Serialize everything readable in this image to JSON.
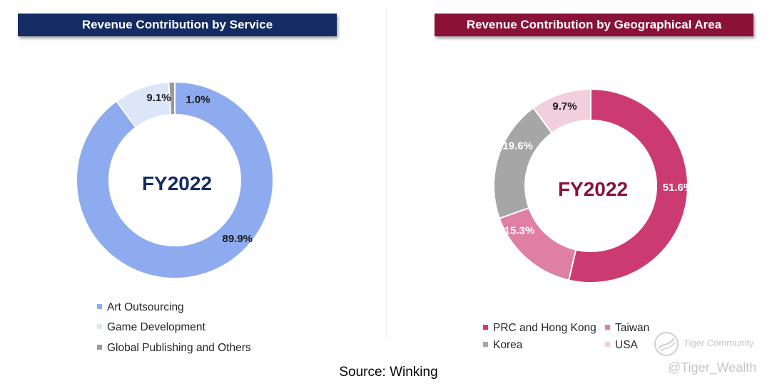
{
  "left_panel": {
    "title": "Revenue Contribution by Service",
    "center_label": "FY2022",
    "legend": [
      {
        "label": "Art Outsourcing",
        "color": "#8fabf0"
      },
      {
        "label": "Game Development",
        "color": "#dde5f9"
      },
      {
        "label": "Global Publishing and Others",
        "color": "#999999"
      }
    ]
  },
  "right_panel": {
    "title": "Revenue Contribution by Geographical Area",
    "center_label": "FY2022",
    "legend": [
      {
        "label": "PRC and Hong Kong",
        "color": "#cc3a72"
      },
      {
        "label": "Taiwan",
        "color": "#de7fa3"
      },
      {
        "label": "Korea",
        "color": "#a6a6a6"
      },
      {
        "label": "USA",
        "color": "#f1cfdd"
      }
    ]
  },
  "chart_data": [
    {
      "type": "pie",
      "title": "Revenue Contribution by Service",
      "center_text": "FY2022",
      "categories": [
        "Art Outsourcing",
        "Game Development",
        "Global Publishing and Others"
      ],
      "values": [
        89.9,
        9.1,
        1.0
      ],
      "labels": [
        "89.9%",
        "9.1%",
        "1.0%"
      ],
      "colors": [
        "#8fabf0",
        "#dde5f9",
        "#999999"
      ],
      "legend_position": "bottom-left"
    },
    {
      "type": "pie",
      "title": "Revenue Contribution by Geographical Area",
      "center_text": "FY2022",
      "categories": [
        "PRC and Hong Kong",
        "Taiwan",
        "Korea",
        "USA"
      ],
      "values": [
        51.6,
        15.3,
        19.6,
        9.7
      ],
      "labels": [
        "51.6%",
        "15.3%",
        "19.6%",
        "9.7%"
      ],
      "colors": [
        "#cc3a72",
        "#de7fa3",
        "#a6a6a6",
        "#f1cfdd"
      ],
      "legend_position": "bottom"
    }
  ],
  "source": "Source: Winking",
  "watermark": {
    "community": "Tiger Community",
    "handle": "@Tiger_Wealth"
  }
}
